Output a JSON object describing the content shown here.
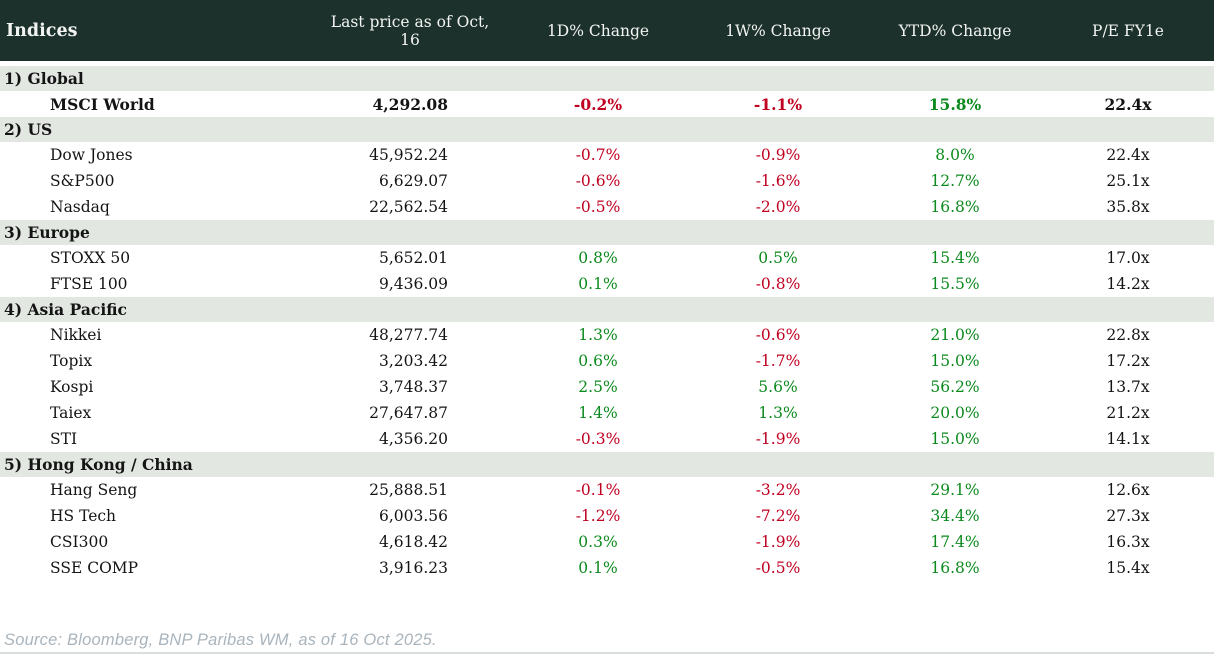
{
  "table": {
    "title": "Indices",
    "columns": {
      "price": "Last price as of Oct, 16",
      "chg_1d": "1D% Change",
      "chg_1w": "1W% Change",
      "chg_ytd": "YTD% Change",
      "pe": "P/E FY1e"
    },
    "sections": [
      {
        "label": "1) Global",
        "rows": [
          {
            "name": "MSCI World",
            "last_price": "4,292.08",
            "chg_1d": "-0.2%",
            "chg_1w": "-1.1%",
            "chg_ytd": "15.8%",
            "pe": "22.4x",
            "highlight": true
          }
        ]
      },
      {
        "label": "2) US",
        "rows": [
          {
            "name": "Dow Jones",
            "last_price": "45,952.24",
            "chg_1d": "-0.7%",
            "chg_1w": "-0.9%",
            "chg_ytd": "8.0%",
            "pe": "22.4x",
            "highlight": false
          },
          {
            "name": "S&P500",
            "last_price": "6,629.07",
            "chg_1d": "-0.6%",
            "chg_1w": "-1.6%",
            "chg_ytd": "12.7%",
            "pe": "25.1x",
            "highlight": false
          },
          {
            "name": "Nasdaq",
            "last_price": "22,562.54",
            "chg_1d": "-0.5%",
            "chg_1w": "-2.0%",
            "chg_ytd": "16.8%",
            "pe": "35.8x",
            "highlight": false
          }
        ]
      },
      {
        "label": "3) Europe",
        "rows": [
          {
            "name": "STOXX 50",
            "last_price": "5,652.01",
            "chg_1d": "0.8%",
            "chg_1w": "0.5%",
            "chg_ytd": "15.4%",
            "pe": "17.0x",
            "highlight": false
          },
          {
            "name": "FTSE 100",
            "last_price": "9,436.09",
            "chg_1d": "0.1%",
            "chg_1w": "-0.8%",
            "chg_ytd": "15.5%",
            "pe": "14.2x",
            "highlight": false
          }
        ]
      },
      {
        "label": "4) Asia Pacific",
        "rows": [
          {
            "name": "Nikkei",
            "last_price": "48,277.74",
            "chg_1d": "1.3%",
            "chg_1w": "-0.6%",
            "chg_ytd": "21.0%",
            "pe": "22.8x",
            "highlight": false
          },
          {
            "name": "Topix",
            "last_price": "3,203.42",
            "chg_1d": "0.6%",
            "chg_1w": "-1.7%",
            "chg_ytd": "15.0%",
            "pe": "17.2x",
            "highlight": false
          },
          {
            "name": "Kospi",
            "last_price": "3,748.37",
            "chg_1d": "2.5%",
            "chg_1w": "5.6%",
            "chg_ytd": "56.2%",
            "pe": "13.7x",
            "highlight": false
          },
          {
            "name": "Taiex",
            "last_price": "27,647.87",
            "chg_1d": "1.4%",
            "chg_1w": "1.3%",
            "chg_ytd": "20.0%",
            "pe": "21.2x",
            "highlight": false
          },
          {
            "name": "STI",
            "last_price": "4,356.20",
            "chg_1d": "-0.3%",
            "chg_1w": "-1.9%",
            "chg_ytd": "15.0%",
            "pe": "14.1x",
            "highlight": false
          }
        ]
      },
      {
        "label": "5) Hong Kong / China",
        "rows": [
          {
            "name": "Hang Seng",
            "last_price": "25,888.51",
            "chg_1d": "-0.1%",
            "chg_1w": "-3.2%",
            "chg_ytd": "29.1%",
            "pe": "12.6x",
            "highlight": false
          },
          {
            "name": "HS Tech",
            "last_price": "6,003.56",
            "chg_1d": "-1.2%",
            "chg_1w": "-7.2%",
            "chg_ytd": "34.4%",
            "pe": "27.3x",
            "highlight": false
          },
          {
            "name": "CSI300",
            "last_price": "4,618.42",
            "chg_1d": "0.3%",
            "chg_1w": "-1.9%",
            "chg_ytd": "17.4%",
            "pe": "16.3x",
            "highlight": false
          },
          {
            "name": "SSE COMP",
            "last_price": "3,916.23",
            "chg_1d": "0.1%",
            "chg_1w": "-0.5%",
            "chg_ytd": "16.8%",
            "pe": "15.4x",
            "highlight": false
          }
        ]
      }
    ]
  },
  "footer": {
    "source": "Source: Bloomberg, BNP Paribas WM, as of 16 Oct 2025."
  },
  "colors": {
    "header-bg": "#1c312c",
    "header-text": "#f2f4f1",
    "section-bg": "#e3e7e2",
    "text": "#141414",
    "negative": "#c00021",
    "positive": "#0c8a1e",
    "source": "#a9b4bc",
    "divider": "#d9dedd"
  }
}
